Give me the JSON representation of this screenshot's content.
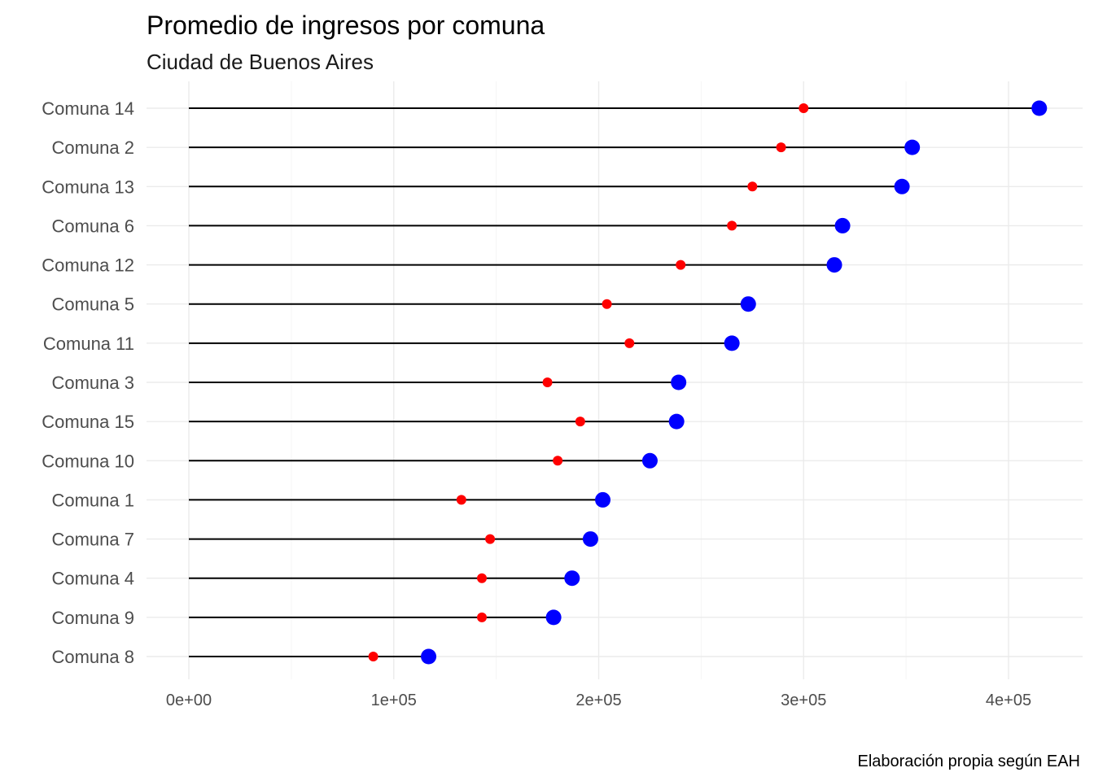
{
  "chart_data": {
    "type": "dumbbell",
    "title": "Promedio de ingresos por comuna",
    "subtitle": "Ciudad de Buenos Aires",
    "caption": "Elaboración propia según EAH",
    "xlabel": "",
    "ylabel": "",
    "xlim": [
      0,
      430000
    ],
    "x_ticks": [
      0,
      100000,
      200000,
      300000,
      400000
    ],
    "x_tick_labels": [
      "0e+00",
      "1e+05",
      "2e+05",
      "3e+05",
      "4e+05"
    ],
    "grid": true,
    "categories": [
      "Comuna 14",
      "Comuna 2",
      "Comuna 13",
      "Comuna 6",
      "Comuna 12",
      "Comuna 5",
      "Comuna 11",
      "Comuna 3",
      "Comuna 15",
      "Comuna 10",
      "Comuna 1",
      "Comuna 7",
      "Comuna 4",
      "Comuna 9",
      "Comuna 8"
    ],
    "series": [
      {
        "color": "#ff0000",
        "values": [
          300000,
          289000,
          275000,
          265000,
          240000,
          204000,
          215000,
          175000,
          191000,
          180000,
          133000,
          147000,
          143000,
          143000,
          90000
        ]
      },
      {
        "color": "#0000ff",
        "values": [
          415000,
          353000,
          348000,
          319000,
          315000,
          273000,
          265000,
          239000,
          238000,
          225000,
          202000,
          196000,
          187000,
          178000,
          117000
        ]
      }
    ],
    "segment_color": "#000000"
  }
}
